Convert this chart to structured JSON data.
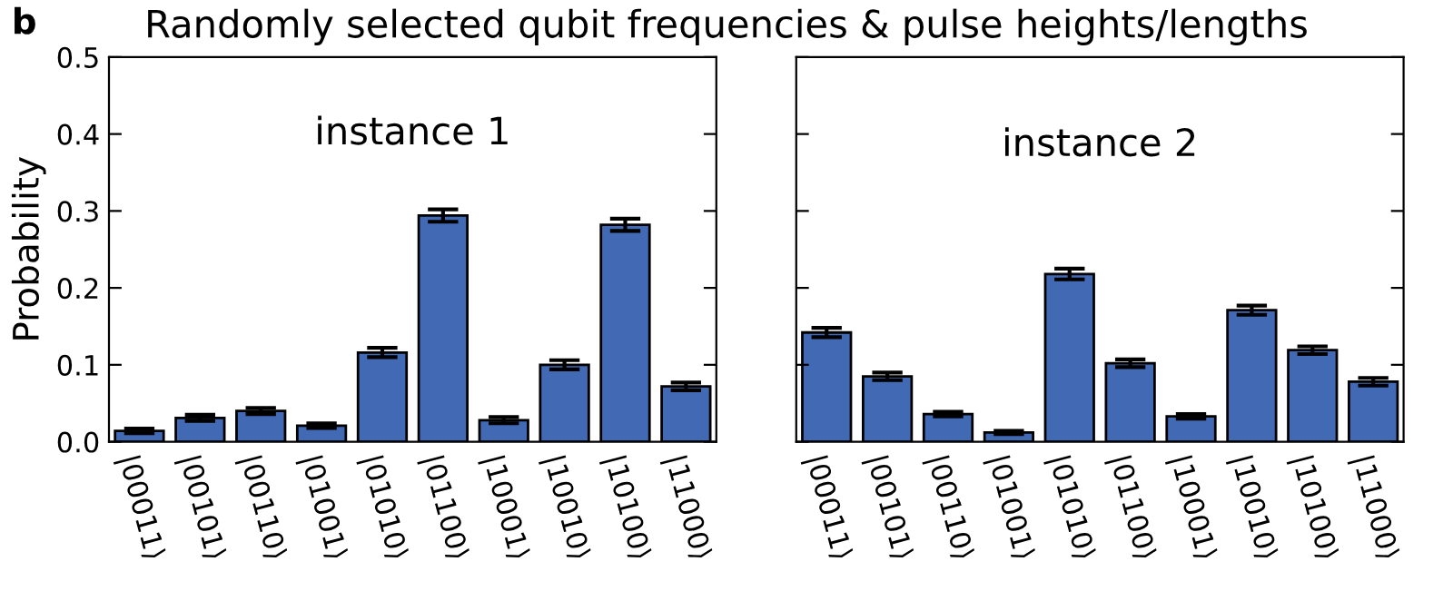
{
  "chart_data": [
    {
      "type": "bar",
      "title": "Randomly selected qubit frequencies & pulse heights/lengths",
      "ylabel": "Probability",
      "annotations": [
        "b",
        "instance 1"
      ],
      "categories": [
        "|00011⟩",
        "|00101⟩",
        "|00110⟩",
        "|01001⟩",
        "|01010⟩",
        "|01100⟩",
        "|10001⟩",
        "|10010⟩",
        "|10100⟩",
        "|11000⟩"
      ],
      "series": [
        {
          "color": "#4169b4",
          "values": [
            0.014,
            0.031,
            0.04,
            0.021,
            0.116,
            0.294,
            0.028,
            0.1,
            0.282,
            0.072
          ],
          "errors": [
            0.003,
            0.004,
            0.004,
            0.003,
            0.006,
            0.008,
            0.004,
            0.006,
            0.008,
            0.005
          ]
        }
      ],
      "ylim": [
        0,
        0.5
      ],
      "yticks": [
        {
          "value": 0,
          "label": "0.0"
        },
        0.1,
        0.2,
        0.3,
        0.4,
        0.5
      ],
      "grid": false
    },
    {
      "type": "bar",
      "annotations": [
        "instance 2"
      ],
      "categories": [
        "|00011⟩",
        "|00101⟩",
        "|00110⟩",
        "|01001⟩",
        "|01010⟩",
        "|01100⟩",
        "|10001⟩",
        "|10010⟩",
        "|10100⟩",
        "|11000⟩"
      ],
      "series": [
        {
          "color": "#4169b4",
          "values": [
            0.142,
            0.085,
            0.036,
            0.012,
            0.218,
            0.102,
            0.033,
            0.171,
            0.119,
            0.078
          ],
          "errors": [
            0.006,
            0.005,
            0.003,
            0.002,
            0.007,
            0.005,
            0.003,
            0.006,
            0.005,
            0.005
          ]
        }
      ],
      "ylim": [
        0,
        0.5
      ],
      "yticks": [
        {
          "value": 0,
          "label": null
        },
        {
          "value": 0.1,
          "label": null
        },
        {
          "value": 0.2,
          "label": null
        },
        {
          "value": 0.3,
          "label": null
        },
        {
          "value": 0.4,
          "label": null
        },
        {
          "value": 0.5,
          "label": null
        }
      ],
      "tick_labels": "x",
      "grid": false
    }
  ]
}
